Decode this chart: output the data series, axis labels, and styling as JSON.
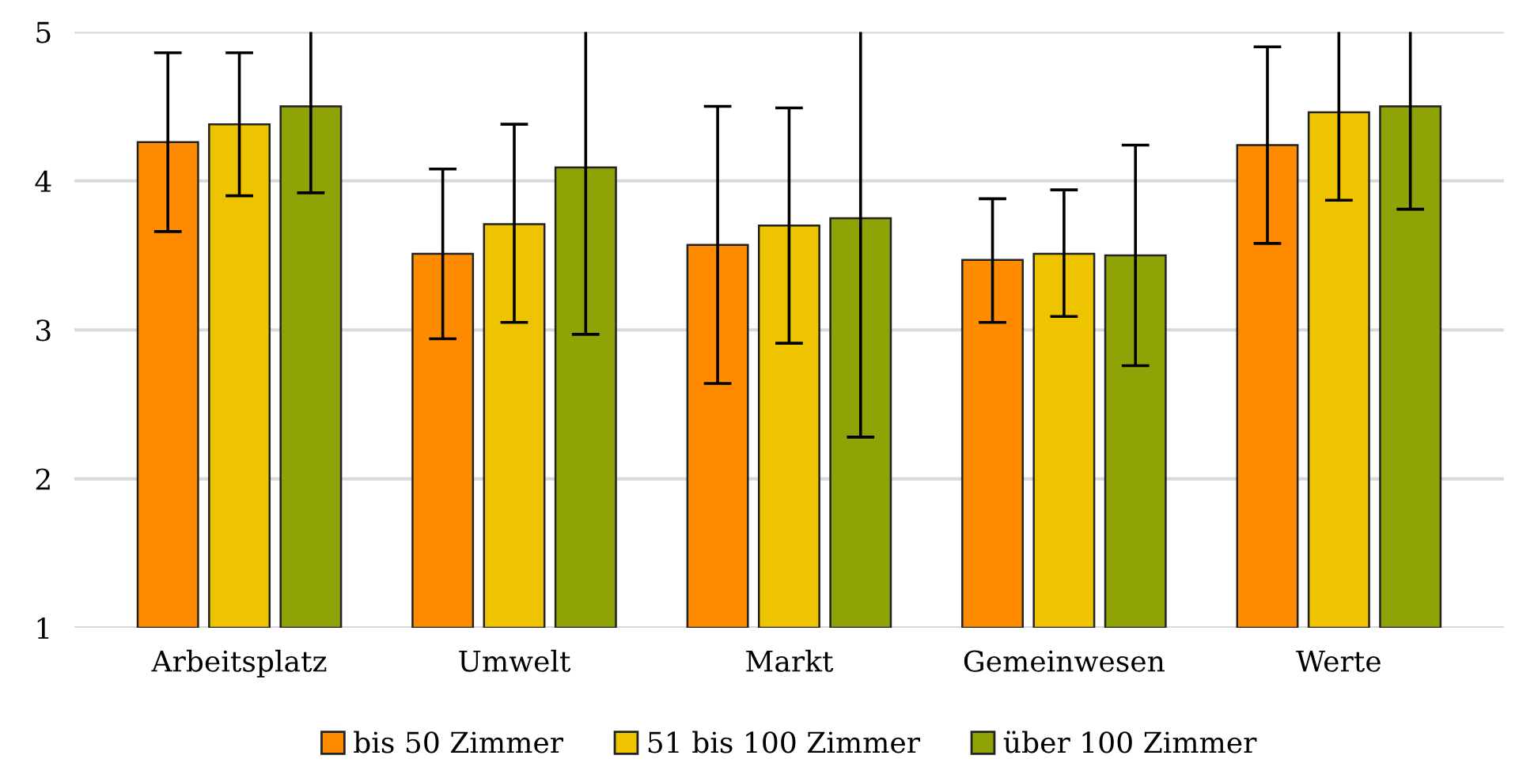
{
  "chart_data": {
    "type": "bar",
    "categories": [
      "Arbeitsplatz",
      "Umwelt",
      "Markt",
      "Gemeinwesen",
      "Werte"
    ],
    "series": [
      {
        "name": "bis 50 Zimmer",
        "color": "#ff8c00",
        "values": [
          4.26,
          3.51,
          3.57,
          3.47,
          4.24
        ],
        "errors": [
          [
            3.66,
            4.86
          ],
          [
            2.94,
            4.08
          ],
          [
            2.64,
            4.5
          ],
          [
            3.05,
            3.88
          ],
          [
            3.58,
            4.9
          ]
        ]
      },
      {
        "name": "51 bis 100 Zimmer",
        "color": "#eec400",
        "values": [
          4.38,
          3.71,
          3.7,
          3.51,
          4.46
        ],
        "errors": [
          [
            3.9,
            4.86
          ],
          [
            3.05,
            4.38
          ],
          [
            2.91,
            4.49
          ],
          [
            3.09,
            3.94
          ],
          [
            3.87,
            5
          ]
        ]
      },
      {
        "name": "über 100 Zimmer",
        "color": "#8fa307",
        "values": [
          4.5,
          4.09,
          3.75,
          3.5,
          4.5
        ],
        "errors": [
          [
            3.92,
            5
          ],
          [
            2.97,
            5
          ],
          [
            2.28,
            5
          ],
          [
            2.76,
            4.24
          ],
          [
            3.81,
            5
          ]
        ]
      }
    ],
    "ylim": [
      1,
      5
    ],
    "yticks": [
      1,
      2,
      3,
      4,
      5
    ],
    "grid": "y",
    "legend": "bottom"
  }
}
